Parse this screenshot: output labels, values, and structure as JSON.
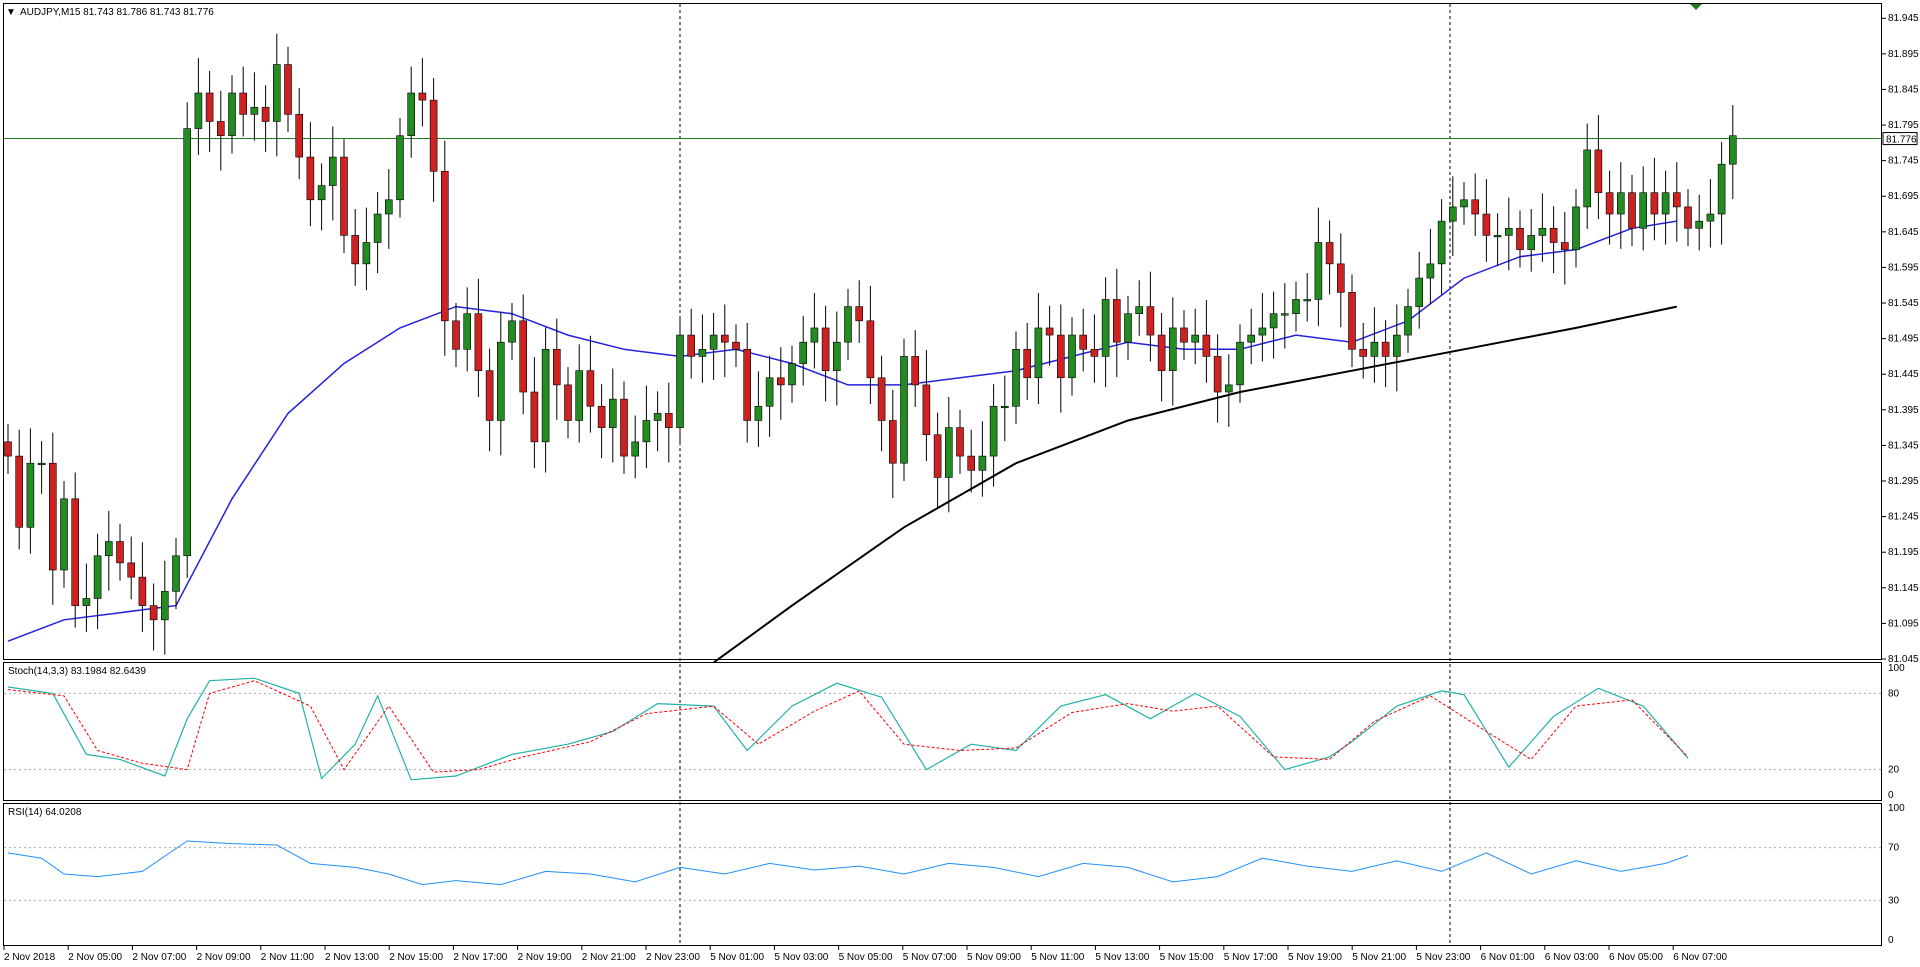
{
  "colors": {
    "bull": "#228B22",
    "bear": "#CC2222",
    "wick": "#000000",
    "ma_fast": "#2222DD",
    "ma_slow": "#000000",
    "price_line": "#1E7B1E",
    "stoch_main": "#20B2AA",
    "stoch_signal": "#FF0000",
    "rsi": "#1E90FF",
    "frame": "#000000",
    "level": "#AAAAAA"
  },
  "chart_data": [
    {
      "type": "candlestick",
      "name": "main",
      "title": "AUDJPY,M15  81.743 81.786 81.743 81.776",
      "ylim": [
        81.045,
        81.965
      ],
      "y_ticks": [
        81.945,
        81.895,
        81.845,
        81.795,
        81.745,
        81.695,
        81.645,
        81.595,
        81.545,
        81.495,
        81.445,
        81.395,
        81.345,
        81.295,
        81.245,
        81.195,
        81.145,
        81.095,
        81.045
      ],
      "y_tick_labels": [
        "81.945",
        "81.895",
        "81.845",
        "81.795",
        "81.745",
        "81.695",
        "81.645",
        "81.595",
        "81.545",
        "81.495",
        "81.445",
        "81.395",
        "81.345",
        "81.295",
        "81.245",
        "81.195",
        "81.145",
        "81.095",
        "81.045"
      ],
      "current_price": 81.776,
      "current_price_label": "81.776",
      "x_labels": [
        "2 Nov 2018",
        "2 Nov 05:00",
        "2 Nov 07:00",
        "2 Nov 09:00",
        "2 Nov 11:00",
        "2 Nov 13:00",
        "2 Nov 15:00",
        "2 Nov 17:00",
        "2 Nov 19:00",
        "2 Nov 21:00",
        "2 Nov 23:00",
        "5 Nov 01:00",
        "5 Nov 03:00",
        "5 Nov 05:00",
        "5 Nov 07:00",
        "5 Nov 09:00",
        "5 Nov 11:00",
        "5 Nov 13:00",
        "5 Nov 15:00",
        "5 Nov 17:00",
        "5 Nov 19:00",
        "5 Nov 21:00",
        "5 Nov 23:00",
        "6 Nov 01:00",
        "6 Nov 03:00",
        "6 Nov 05:00",
        "6 Nov 07:00"
      ],
      "closes": [
        81.33,
        81.23,
        81.32,
        81.32,
        81.17,
        81.27,
        81.12,
        81.13,
        81.19,
        81.21,
        81.18,
        81.16,
        81.12,
        81.1,
        81.14,
        81.19,
        81.79,
        81.84,
        81.8,
        81.78,
        81.84,
        81.81,
        81.82,
        81.8,
        81.88,
        81.81,
        81.75,
        81.69,
        81.71,
        81.75,
        81.64,
        81.6,
        81.63,
        81.67,
        81.69,
        81.78,
        81.84,
        81.83,
        81.73,
        81.52,
        81.48,
        81.53,
        81.45,
        81.38,
        81.49,
        81.52,
        81.42,
        81.35,
        81.48,
        81.43,
        81.38,
        81.45,
        81.4,
        81.37,
        81.41,
        81.33,
        81.35,
        81.38,
        81.39,
        81.37,
        81.5,
        81.47,
        81.48,
        81.5,
        81.49,
        81.48,
        81.38,
        81.4,
        81.44,
        81.43,
        81.46,
        81.49,
        81.51,
        81.45,
        81.49,
        81.54,
        81.52,
        81.44,
        81.38,
        81.32,
        81.47,
        81.43,
        81.36,
        81.3,
        81.37,
        81.33,
        81.31,
        81.33,
        81.4,
        81.4,
        81.48,
        81.44,
        81.51,
        81.5,
        81.44,
        81.5,
        81.48,
        81.47,
        81.55,
        81.49,
        81.53,
        81.54,
        81.5,
        81.45,
        81.51,
        81.49,
        81.5,
        81.47,
        81.42,
        81.43,
        81.49,
        81.5,
        81.51,
        81.53,
        81.53,
        81.55,
        81.55,
        81.63,
        81.6,
        81.56,
        81.48,
        81.47,
        81.49,
        81.47,
        81.5,
        81.54,
        81.58,
        81.6,
        81.66,
        81.68,
        81.69,
        81.67,
        81.64,
        81.64,
        81.65,
        81.62,
        81.64,
        81.65,
        81.63,
        81.62,
        81.68,
        81.76,
        81.7,
        81.67,
        81.7,
        81.65,
        81.7,
        81.67,
        81.7,
        81.68,
        81.65,
        81.66,
        81.67,
        81.74,
        81.78
      ],
      "ma_fast_points": [
        [
          0,
          81.07
        ],
        [
          5,
          81.1
        ],
        [
          10,
          81.11
        ],
        [
          15,
          81.12
        ],
        [
          20,
          81.27
        ],
        [
          25,
          81.39
        ],
        [
          30,
          81.46
        ],
        [
          35,
          81.51
        ],
        [
          40,
          81.54
        ],
        [
          45,
          81.53
        ],
        [
          50,
          81.5
        ],
        [
          55,
          81.48
        ],
        [
          60,
          81.47
        ],
        [
          65,
          81.48
        ],
        [
          70,
          81.46
        ],
        [
          75,
          81.43
        ],
        [
          80,
          81.43
        ],
        [
          85,
          81.44
        ],
        [
          90,
          81.45
        ],
        [
          95,
          81.47
        ],
        [
          100,
          81.49
        ],
        [
          105,
          81.48
        ],
        [
          110,
          81.48
        ],
        [
          115,
          81.5
        ],
        [
          120,
          81.49
        ],
        [
          125,
          81.52
        ],
        [
          130,
          81.58
        ],
        [
          135,
          81.61
        ],
        [
          140,
          81.62
        ],
        [
          145,
          81.65
        ],
        [
          149,
          81.66
        ]
      ],
      "ma_slow_points": [
        [
          63,
          81.04
        ],
        [
          70,
          81.12
        ],
        [
          80,
          81.23
        ],
        [
          90,
          81.32
        ],
        [
          100,
          81.38
        ],
        [
          110,
          81.42
        ],
        [
          120,
          81.45
        ],
        [
          130,
          81.48
        ],
        [
          140,
          81.51
        ],
        [
          149,
          81.54
        ]
      ]
    },
    {
      "type": "line",
      "name": "stochastic",
      "title": "Stoch(14,3,3) 83.1984 82.6439",
      "ylim": [
        0,
        100
      ],
      "levels": [
        20,
        80
      ],
      "y_tick_labels": [
        "100",
        "80",
        "20",
        "0"
      ],
      "main_points": [
        [
          0,
          85
        ],
        [
          4,
          80
        ],
        [
          7,
          32
        ],
        [
          10,
          28
        ],
        [
          14,
          15
        ],
        [
          16,
          60
        ],
        [
          18,
          90
        ],
        [
          22,
          92
        ],
        [
          26,
          80
        ],
        [
          28,
          13
        ],
        [
          31,
          40
        ],
        [
          33,
          78
        ],
        [
          36,
          12
        ],
        [
          40,
          15
        ],
        [
          45,
          32
        ],
        [
          50,
          40
        ],
        [
          54,
          50
        ],
        [
          58,
          72
        ],
        [
          63,
          70
        ],
        [
          66,
          35
        ],
        [
          70,
          70
        ],
        [
          74,
          88
        ],
        [
          78,
          77
        ],
        [
          82,
          20
        ],
        [
          86,
          40
        ],
        [
          90,
          35
        ],
        [
          94,
          70
        ],
        [
          98,
          79
        ],
        [
          102,
          60
        ],
        [
          106,
          80
        ],
        [
          110,
          62
        ],
        [
          114,
          20
        ],
        [
          118,
          30
        ],
        [
          120,
          42
        ],
        [
          124,
          70
        ],
        [
          128,
          82
        ],
        [
          130,
          79
        ],
        [
          134,
          22
        ],
        [
          138,
          62
        ],
        [
          142,
          84
        ],
        [
          146,
          70
        ],
        [
          150,
          29
        ]
      ],
      "signal_points": [
        [
          0,
          83
        ],
        [
          5,
          78
        ],
        [
          8,
          35
        ],
        [
          12,
          25
        ],
        [
          16,
          20
        ],
        [
          18,
          80
        ],
        [
          22,
          90
        ],
        [
          27,
          70
        ],
        [
          30,
          20
        ],
        [
          34,
          70
        ],
        [
          38,
          18
        ],
        [
          42,
          20
        ],
        [
          46,
          30
        ],
        [
          52,
          42
        ],
        [
          57,
          64
        ],
        [
          63,
          70
        ],
        [
          67,
          40
        ],
        [
          72,
          66
        ],
        [
          76,
          82
        ],
        [
          80,
          40
        ],
        [
          85,
          35
        ],
        [
          90,
          37
        ],
        [
          95,
          65
        ],
        [
          100,
          72
        ],
        [
          104,
          66
        ],
        [
          108,
          70
        ],
        [
          113,
          30
        ],
        [
          118,
          28
        ],
        [
          122,
          58
        ],
        [
          127,
          78
        ],
        [
          132,
          50
        ],
        [
          136,
          28
        ],
        [
          140,
          70
        ],
        [
          145,
          75
        ],
        [
          150,
          30
        ]
      ]
    },
    {
      "type": "line",
      "name": "rsi",
      "title": "RSI(14) 64.0208",
      "ylim": [
        0,
        100
      ],
      "levels": [
        30,
        70
      ],
      "y_tick_labels": [
        "100",
        "70",
        "30",
        "0"
      ],
      "points": [
        [
          0,
          66
        ],
        [
          3,
          62
        ],
        [
          5,
          50
        ],
        [
          8,
          48
        ],
        [
          12,
          52
        ],
        [
          16,
          75
        ],
        [
          20,
          73
        ],
        [
          24,
          72
        ],
        [
          27,
          58
        ],
        [
          31,
          55
        ],
        [
          34,
          50
        ],
        [
          37,
          42
        ],
        [
          40,
          45
        ],
        [
          44,
          42
        ],
        [
          48,
          52
        ],
        [
          52,
          50
        ],
        [
          56,
          44
        ],
        [
          60,
          55
        ],
        [
          64,
          50
        ],
        [
          68,
          58
        ],
        [
          72,
          53
        ],
        [
          76,
          56
        ],
        [
          80,
          50
        ],
        [
          84,
          58
        ],
        [
          88,
          55
        ],
        [
          92,
          48
        ],
        [
          96,
          58
        ],
        [
          100,
          55
        ],
        [
          104,
          44
        ],
        [
          108,
          48
        ],
        [
          112,
          62
        ],
        [
          116,
          56
        ],
        [
          120,
          52
        ],
        [
          124,
          60
        ],
        [
          128,
          52
        ],
        [
          132,
          66
        ],
        [
          136,
          50
        ],
        [
          140,
          60
        ],
        [
          144,
          52
        ],
        [
          148,
          58
        ],
        [
          150,
          64
        ]
      ]
    }
  ]
}
